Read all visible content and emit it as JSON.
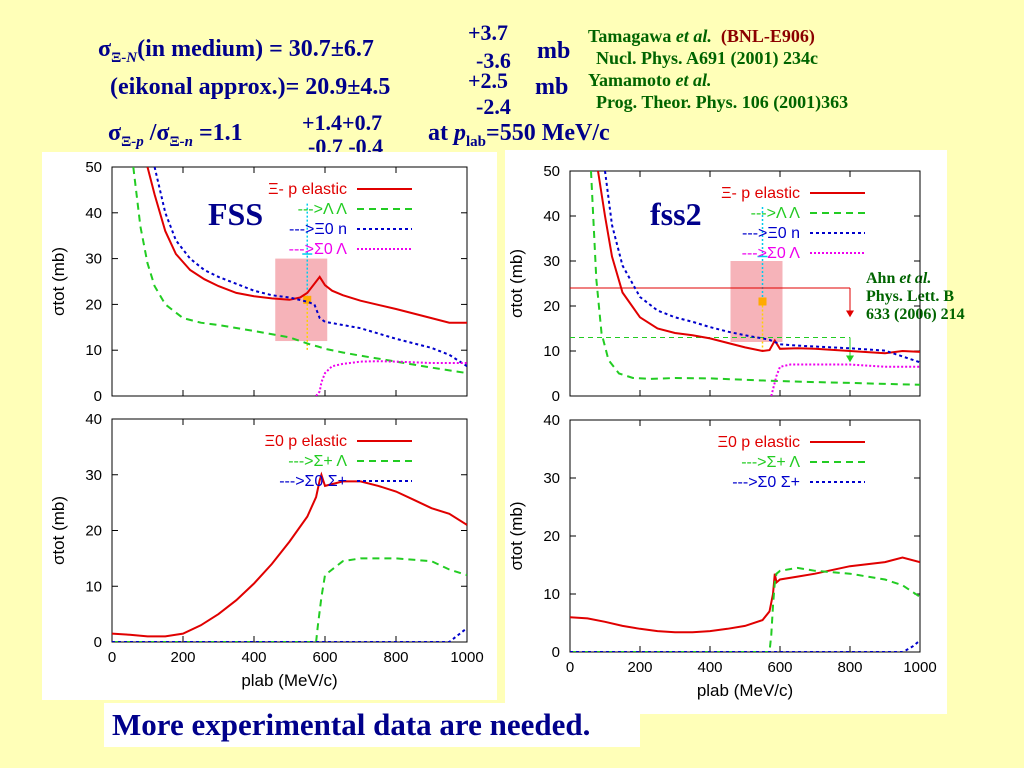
{
  "header": {
    "l1_sigma": "σ",
    "l1_sub": "Ξ",
    "l1_minus": "-",
    "l1_N": "N",
    "l1_text": "(in medium) = 30.7±6.7",
    "l1_up": "+3.7",
    "l1_dn": "-3.6",
    "l1_unit": "mb",
    "l2_text": "(eikonal approx.)= 20.9±4.5",
    "l2_up": "+2.5",
    "l2_dn": "-2.4",
    "l2_unit": "mb",
    "l3_a": "σ",
    "l3_sub1": "Ξ",
    "l3_p": "-p",
    "l3_slash": " /σ",
    "l3_sub2": "Ξ",
    "l3_n": "-n",
    "l3_val": " =1.1",
    "l3_up": "+1.4+0.7",
    "l3_dn": "-0.7 -0.4",
    "l3_at": "at ",
    "l3_p2": "p",
    "l3_lab": "lab",
    "l3_rest": "=550 MeV/c"
  },
  "refs": {
    "r1_name": "Tamagawa ",
    "r1_etal": "et al.",
    "r1_exp": "(BNL-E906)",
    "r1_journal": "Nucl. Phys. A691 (2001) 234c",
    "r2_name": "Yamamoto ",
    "r2_etal": "et al.",
    "r2_journal": "Prog. Theor. Phys. 106 (2001)363"
  },
  "ahn": {
    "name": "Ahn ",
    "etal": "et al.",
    "journal1": "Phys. Lett. B",
    "journal2": "633 (2006) 214"
  },
  "footer": "More experimental data are needed.",
  "colors": {
    "header": "#00008b",
    "ref": "#006400",
    "red": "#e00000",
    "green": "#22cc22",
    "blue": "#0000cc",
    "magenta": "#ee00ee",
    "cyan": "#00ccee",
    "pink": "#f4a0a8",
    "orange": "#ffaa00"
  },
  "chart_data": [
    {
      "type": "line",
      "model": "FSS",
      "ylabel": "σtot (mb)",
      "ylim": [
        0,
        50
      ],
      "xlim": [
        0,
        1000
      ],
      "yticks": [
        0,
        10,
        20,
        30,
        40,
        50
      ],
      "legend": [
        "Ξ- p elastic",
        "--->Λ Λ",
        "--->Ξ0 n",
        "--->Σ0 Λ"
      ],
      "series": [
        {
          "name": "Ξ- p elastic",
          "x": [
            100,
            120,
            150,
            180,
            220,
            260,
            300,
            350,
            400,
            450,
            500,
            530,
            550,
            570,
            585,
            600,
            620,
            650,
            700,
            800,
            900,
            950,
            1000
          ],
          "y": [
            50,
            44,
            36,
            31,
            27.5,
            25.5,
            24,
            22.5,
            21.8,
            21.3,
            21,
            21.5,
            22.5,
            24.5,
            26,
            24.2,
            23,
            22,
            20.8,
            19,
            17,
            16,
            16
          ]
        },
        {
          "name": "--->Λ Λ",
          "x": [
            60,
            80,
            100,
            120,
            150,
            200,
            250,
            300,
            400,
            500,
            560,
            580,
            600,
            650,
            700,
            800,
            900,
            1000
          ],
          "y": [
            50,
            37,
            29,
            24,
            20,
            17,
            16,
            15.5,
            14.2,
            12.8,
            11.2,
            10.8,
            10.3,
            9.5,
            8.8,
            7.5,
            6.2,
            5
          ]
        },
        {
          "name": "--->Ξ0 n",
          "x": [
            120,
            150,
            180,
            220,
            260,
            300,
            350,
            400,
            450,
            500,
            550,
            570,
            585,
            600,
            650,
            700,
            800,
            900,
            950,
            1000
          ],
          "y": [
            50,
            40,
            34,
            30,
            27.5,
            26,
            24.5,
            23,
            22,
            21.5,
            20.6,
            20,
            17,
            16.2,
            15.5,
            14.8,
            12.5,
            10.5,
            9,
            6.5
          ]
        },
        {
          "name": "--->Σ0 Λ",
          "x": [
            575,
            585,
            590,
            600,
            620,
            650,
            700,
            750,
            800,
            900,
            1000
          ],
          "y": [
            0,
            1,
            3,
            5,
            6.5,
            7,
            7.5,
            7.6,
            7.5,
            7.2,
            7.2
          ]
        }
      ],
      "exp_point": {
        "x": 550,
        "y": 21,
        "err_lo": 10,
        "err_hi": 31
      }
    },
    {
      "type": "line",
      "model": "fss2",
      "ylabel": "σtot (mb)",
      "ylim": [
        0,
        50
      ],
      "xlim": [
        0,
        1000
      ],
      "yticks": [
        0,
        10,
        20,
        30,
        40,
        50
      ],
      "legend": [
        "Ξ- p elastic",
        "--->Λ Λ",
        "--->Ξ0 n",
        "--->Σ0 Λ"
      ],
      "series": [
        {
          "name": "Ξ- p elastic",
          "x": [
            80,
            100,
            120,
            150,
            200,
            250,
            300,
            350,
            400,
            450,
            500,
            550,
            570,
            585,
            600,
            650,
            700,
            800,
            900,
            950,
            1000
          ],
          "y": [
            50,
            40,
            31,
            23,
            17.5,
            15,
            14,
            13.5,
            12.8,
            11.8,
            10.8,
            10,
            10.2,
            12.3,
            10.5,
            10.6,
            10.5,
            10,
            9.5,
            10,
            9.8
          ]
        },
        {
          "name": "--->Λ Λ",
          "x": [
            60,
            75,
            90,
            110,
            140,
            180,
            230,
            300,
            400,
            500,
            600,
            700,
            800,
            900,
            1000
          ],
          "y": [
            50,
            26,
            14,
            8,
            5,
            4,
            3.8,
            4,
            3.9,
            3.6,
            3.3,
            3.1,
            2.9,
            2.7,
            2.5
          ]
        },
        {
          "name": "--->Ξ0 n",
          "x": [
            100,
            120,
            150,
            200,
            250,
            300,
            350,
            400,
            450,
            500,
            550,
            570,
            585,
            600,
            650,
            700,
            800,
            900,
            1000
          ],
          "y": [
            50,
            38,
            29,
            22,
            19,
            17.5,
            16.5,
            15.3,
            14.3,
            13.5,
            12.8,
            12.5,
            12,
            11.5,
            11.2,
            11,
            10.6,
            10.1,
            7.5
          ]
        },
        {
          "name": "--->Σ0 Λ",
          "x": [
            575,
            580,
            590,
            600,
            630,
            700,
            800,
            900,
            1000
          ],
          "y": [
            0,
            1.5,
            4.5,
            6.5,
            7,
            7,
            7,
            6.5,
            6.5
          ]
        }
      ],
      "exp_point": {
        "x": 550,
        "y": 21,
        "err_lo": 10,
        "err_hi": 31
      },
      "ahn_point": {
        "x_start": 0,
        "x_end": 780,
        "y_total": 24,
        "y_LL": 13
      }
    },
    {
      "type": "line",
      "model": "FSS",
      "ylabel": "σtot (mb)",
      "xlabel": "plab (MeV/c)",
      "ylim": [
        0,
        40
      ],
      "xlim": [
        0,
        1000
      ],
      "yticks": [
        0,
        10,
        20,
        30,
        40
      ],
      "xticks": [
        0,
        200,
        400,
        600,
        800,
        1000
      ],
      "legend": [
        "Ξ0 p elastic",
        "--->Σ+ Λ",
        "--->Σ0 Σ+"
      ],
      "series": [
        {
          "name": "Ξ0 p elastic",
          "x": [
            0,
            50,
            100,
            150,
            200,
            250,
            300,
            350,
            400,
            450,
            500,
            550,
            575,
            585,
            590,
            600,
            650,
            700,
            750,
            800,
            850,
            900,
            950,
            1000
          ],
          "y": [
            1.5,
            1.3,
            1,
            1,
            1.5,
            3,
            5,
            7.5,
            10.5,
            14,
            18,
            22.5,
            26,
            29,
            30,
            28,
            28.8,
            28.8,
            28,
            27,
            25.5,
            24,
            23,
            21
          ]
        },
        {
          "name": "--->Σ+ Λ",
          "x": [
            0,
            570,
            575,
            580,
            590,
            600,
            650,
            700,
            750,
            800,
            900,
            950,
            1000
          ],
          "y": [
            0,
            0,
            0,
            3,
            8,
            12,
            14.5,
            15,
            15,
            15,
            14.5,
            13,
            12
          ]
        },
        {
          "name": "--->Σ0 Σ+",
          "x": [
            0,
            900,
            950,
            960,
            980,
            1000
          ],
          "y": [
            0,
            0,
            0,
            0.5,
            1.5,
            2.5
          ]
        }
      ]
    },
    {
      "type": "line",
      "model": "fss2",
      "ylabel": "σtot (mb)",
      "xlabel": "plab (MeV/c)",
      "ylim": [
        0,
        40
      ],
      "xlim": [
        0,
        1000
      ],
      "yticks": [
        0,
        10,
        20,
        30,
        40
      ],
      "xticks": [
        0,
        200,
        400,
        600,
        800,
        1000
      ],
      "legend": [
        "Ξ0 p elastic",
        "--->Σ+ Λ",
        "--->Σ0 Σ+"
      ],
      "series": [
        {
          "name": "Ξ0 p elastic",
          "x": [
            0,
            50,
            100,
            150,
            200,
            250,
            300,
            350,
            400,
            450,
            500,
            550,
            570,
            580,
            585,
            590,
            600,
            650,
            700,
            800,
            900,
            950,
            1000
          ],
          "y": [
            6,
            5.8,
            5.2,
            4.5,
            4,
            3.6,
            3.4,
            3.4,
            3.6,
            4,
            4.5,
            5.5,
            7,
            10,
            13.5,
            12,
            12.5,
            13,
            13.5,
            14.8,
            15.5,
            16.3,
            15.5
          ]
        },
        {
          "name": "--->Σ+ Λ",
          "x": [
            0,
            570,
            575,
            580,
            585,
            590,
            600,
            650,
            700,
            800,
            900,
            950,
            1000
          ],
          "y": [
            0,
            0,
            3,
            8,
            12,
            13.5,
            14,
            14.5,
            14,
            13.5,
            12.5,
            11.5,
            9.5
          ]
        },
        {
          "name": "--->Σ0 Σ+",
          "x": [
            0,
            950,
            960,
            980,
            1000
          ],
          "y": [
            0,
            0,
            0.3,
            1,
            2
          ]
        }
      ]
    }
  ]
}
